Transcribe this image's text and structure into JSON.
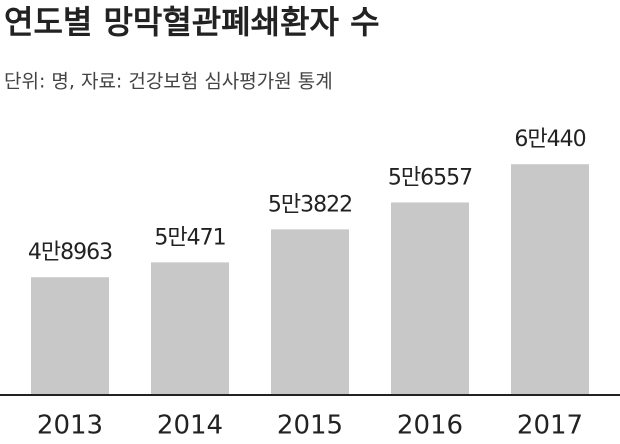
{
  "chart_data": {
    "type": "bar",
    "title": "연도별 망막혈관폐쇄환자 수",
    "subtitle": "단위: 명, 자료: 건강보험 심사평가원 통계",
    "categories": [
      "2013",
      "2014",
      "2015",
      "2016",
      "2017"
    ],
    "values": [
      48963,
      50471,
      53822,
      56557,
      60440
    ],
    "value_labels": [
      "4만8963",
      "5만471",
      "5만3822",
      "5만6557",
      "6만440"
    ],
    "color": "#c8c8c8",
    "ylim": [
      37000,
      63000
    ]
  }
}
